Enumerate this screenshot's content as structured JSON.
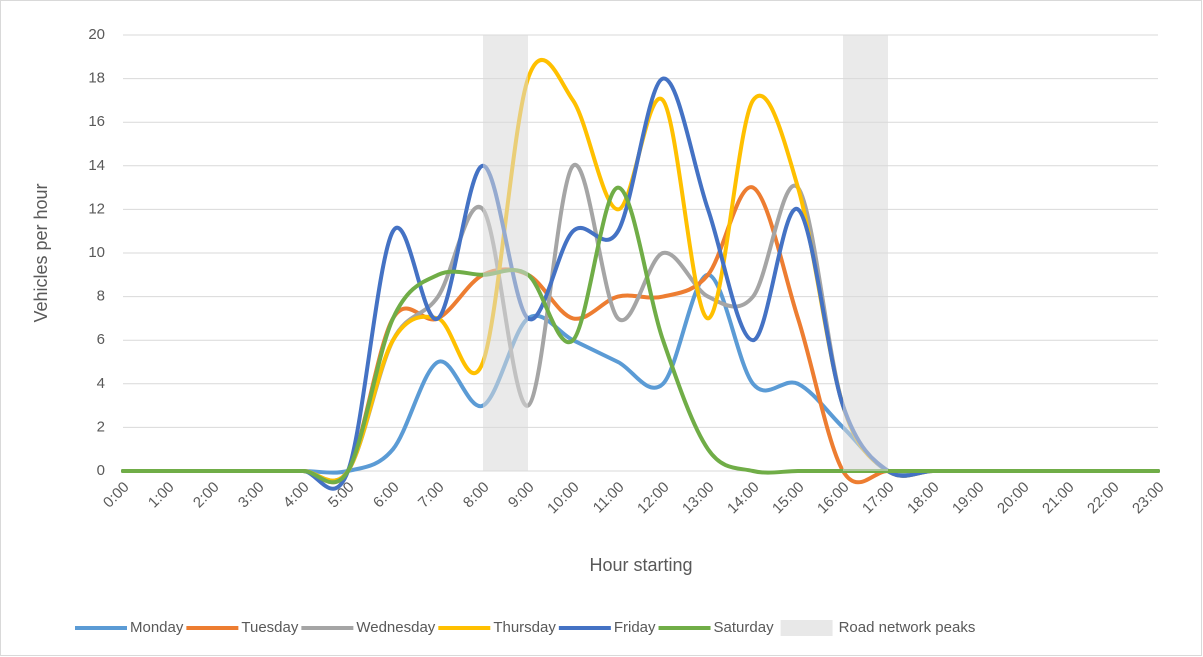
{
  "chart_data": {
    "type": "line",
    "smooth": true,
    "x_label": "Hour starting",
    "y_label": "Vehicles per hour",
    "categories": [
      "0:00",
      "1:00",
      "2:00",
      "3:00",
      "4:00",
      "5:00",
      "6:00",
      "7:00",
      "8:00",
      "9:00",
      "10:00",
      "11:00",
      "12:00",
      "13:00",
      "14:00",
      "15:00",
      "16:00",
      "17:00",
      "18:00",
      "19:00",
      "20:00",
      "21:00",
      "22:00",
      "23:00"
    ],
    "series": [
      {
        "name": "Monday",
        "color": "#5b9bd5",
        "values": [
          0,
          0,
          0,
          0,
          0,
          0,
          1,
          5,
          3,
          7,
          6,
          5,
          4,
          9,
          4,
          4,
          2,
          0,
          0,
          0,
          0,
          0,
          0,
          0
        ]
      },
      {
        "name": "Tuesday",
        "color": "#ed7d31",
        "values": [
          0,
          0,
          0,
          0,
          0,
          0,
          7,
          7,
          9,
          9,
          7,
          8,
          8,
          9,
          13,
          7,
          0,
          0,
          0,
          0,
          0,
          0,
          0,
          0
        ]
      },
      {
        "name": "Wednesday",
        "color": "#a5a5a5",
        "values": [
          0,
          0,
          0,
          0,
          0,
          0,
          6,
          8,
          12,
          3,
          14,
          7,
          10,
          8,
          8,
          13,
          3,
          0,
          0,
          0,
          0,
          0,
          0,
          0
        ]
      },
      {
        "name": "Thursday",
        "color": "#ffc000",
        "values": [
          0,
          0,
          0,
          0,
          0,
          0,
          6,
          7,
          5,
          18,
          17,
          12,
          17,
          7,
          17,
          13,
          3,
          0,
          0,
          0,
          0,
          0,
          0,
          0
        ]
      },
      {
        "name": "Friday",
        "color": "#4472c4",
        "values": [
          0,
          0,
          0,
          0,
          0,
          0,
          11,
          7,
          14,
          7,
          11,
          11,
          18,
          12,
          6,
          12,
          3,
          0,
          0,
          0,
          0,
          0,
          0,
          0
        ]
      },
      {
        "name": "Saturday",
        "color": "#70ad47",
        "values": [
          0,
          0,
          0,
          0,
          0,
          0,
          7,
          9,
          9,
          9,
          6,
          13,
          6,
          1,
          0,
          0,
          0,
          0,
          0,
          0,
          0,
          0,
          0,
          0
        ]
      }
    ],
    "shaded": {
      "name": "Road network peaks",
      "color": "#d9d9d9",
      "ranges": [
        [
          "8:00",
          "9:00"
        ],
        [
          "16:00",
          "17:00"
        ]
      ]
    },
    "ylim": [
      0,
      20
    ],
    "yticks": [
      0,
      2,
      4,
      6,
      8,
      10,
      12,
      14,
      16,
      18,
      20
    ],
    "grid": true,
    "legend": "bottom"
  }
}
